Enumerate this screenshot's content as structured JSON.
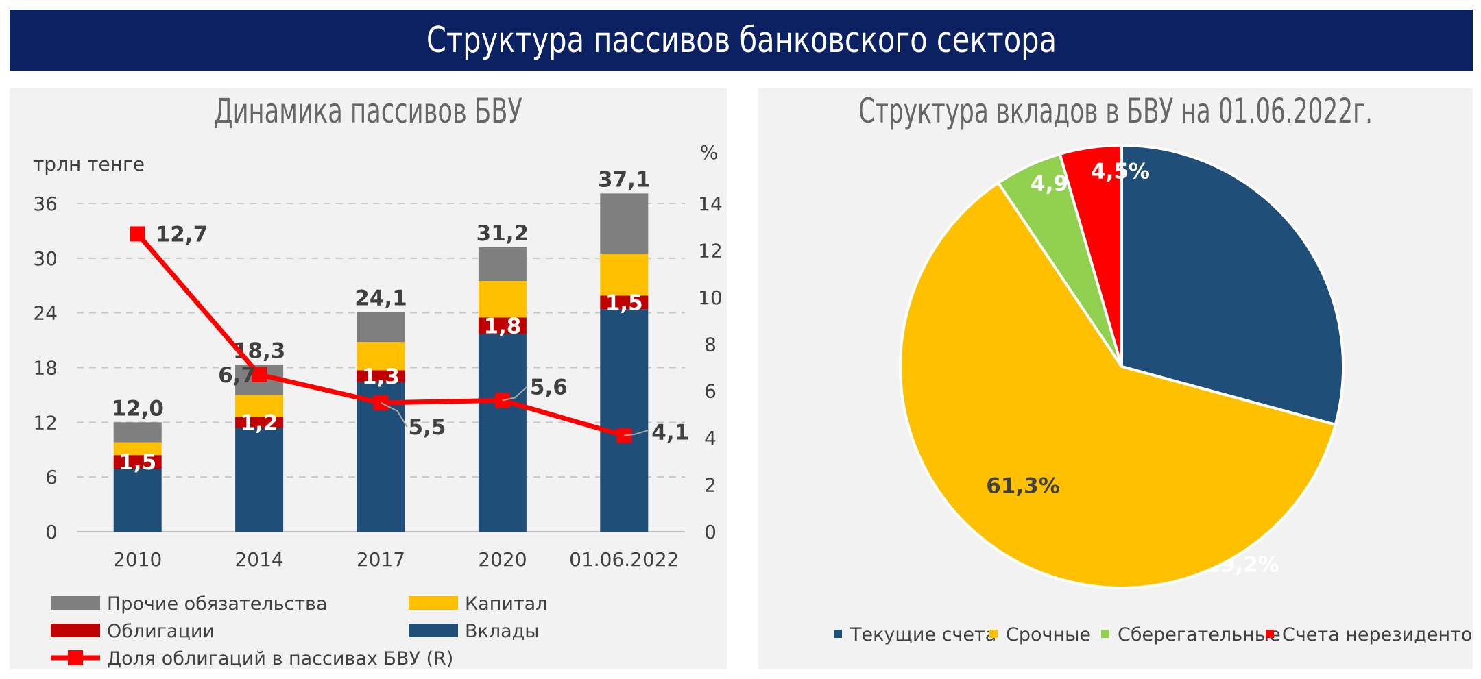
{
  "header": {
    "title": "Структура пассивов банковского сектора"
  },
  "chart_data": [
    {
      "type": "bar",
      "stacked": true,
      "title": "Динамика пассивов БВУ",
      "ylabel": "трлн тенге",
      "y2label": "%",
      "ylim": [
        0,
        36
      ],
      "yticks": [
        0,
        6,
        12,
        18,
        24,
        30,
        36
      ],
      "y2lim": [
        0,
        14
      ],
      "y2ticks": [
        0,
        2,
        4,
        6,
        8,
        10,
        12,
        14
      ],
      "categories": [
        "2010",
        "2014",
        "2017",
        "2020",
        "01.06.2022"
      ],
      "grid": true,
      "legend_position": "bottom",
      "series": [
        {
          "name": "Вклады",
          "color": "#1f4e79",
          "values": [
            6.9,
            11.4,
            16.4,
            21.7,
            24.4
          ]
        },
        {
          "name": "Облигации",
          "color": "#c00000",
          "values": [
            1.5,
            1.2,
            1.3,
            1.8,
            1.5
          ],
          "labels": [
            "1,5",
            "1,2",
            "1,3",
            "1,8",
            "1,5"
          ]
        },
        {
          "name": "Капитал",
          "color": "#ffc000",
          "values": [
            1.4,
            2.4,
            3.1,
            4.0,
            4.6
          ]
        },
        {
          "name": "Прочие обязательства",
          "color": "#7f7f7f",
          "values": [
            2.2,
            3.3,
            3.3,
            3.7,
            6.6
          ]
        }
      ],
      "totals": [
        12.0,
        18.3,
        24.1,
        31.2,
        37.1
      ],
      "total_labels": [
        "12,0",
        "18,3",
        "24,1",
        "31,2",
        "37,1"
      ],
      "line": {
        "name": "Доля облигаций в пассивах БВУ (R)",
        "color": "#ff0000",
        "axis": "right",
        "values": [
          12.7,
          6.7,
          5.5,
          5.6,
          4.1
        ],
        "labels": [
          "12,7",
          "6,7",
          "5,5",
          "5,6",
          "4,1"
        ]
      },
      "legend_order": [
        "Прочие обязательства",
        "Капитал",
        "Облигации",
        "Вклады",
        "Доля облигаций в пассивах БВУ (R)"
      ]
    },
    {
      "type": "pie",
      "title": "Структура вкладов в БВУ на 01.06.2022г.",
      "legend_position": "bottom",
      "slices": [
        {
          "name": "Текущие счета",
          "value": 29.2,
          "label": "29,2%",
          "color": "#1f4e79",
          "label_color": "#ffffff"
        },
        {
          "name": "Срочные",
          "value": 61.3,
          "label": "61,3%",
          "color": "#ffc000",
          "label_color": "#404040"
        },
        {
          "name": "Сберегательные",
          "value": 4.9,
          "label": "4,9%",
          "color": "#92d050",
          "label_color": "#ffffff"
        },
        {
          "name": "Счета нерезидентов",
          "value": 4.5,
          "label": "4,5%",
          "color": "#ff0000",
          "label_color": "#ffffff"
        }
      ]
    }
  ]
}
